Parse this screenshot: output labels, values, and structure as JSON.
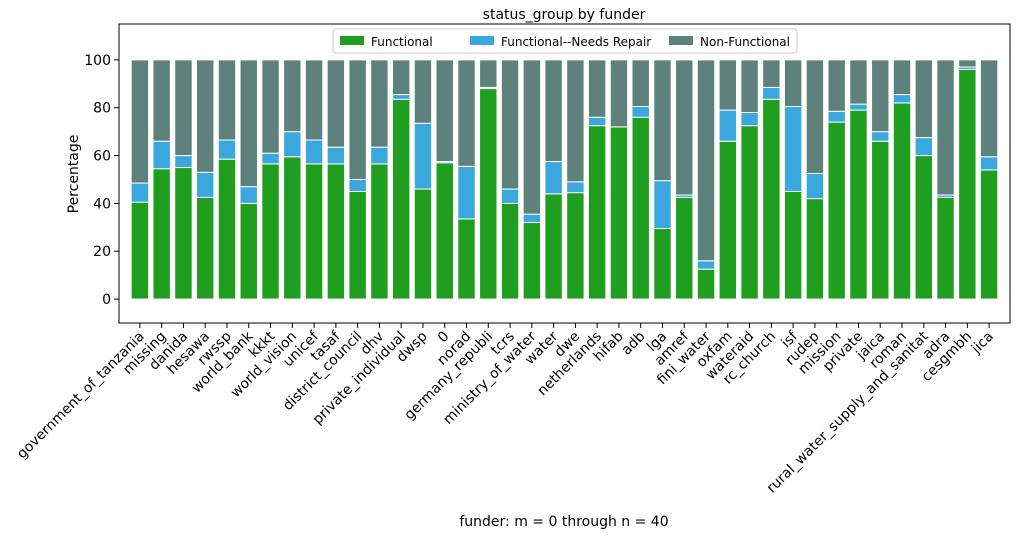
{
  "chart_data": {
    "type": "bar",
    "stacked": true,
    "title": "status_group by funder",
    "xlabel": "funder: m = 0 through n = 40",
    "ylabel": "Percentage",
    "ylim": [
      -10,
      115
    ],
    "yticks": [
      0,
      20,
      40,
      60,
      80,
      100
    ],
    "grid": false,
    "legend_position": "top-center",
    "categories": [
      "government_of_tanzania",
      "missing",
      "danida",
      "hesawa",
      "rwssp",
      "world_bank",
      "kkkt",
      "world_vision",
      "unicef",
      "tasaf",
      "district_council",
      "dhv",
      "private_individual",
      "dwsp",
      "0",
      "norad",
      "germany_republi",
      "tcrs",
      "ministry_of_water",
      "water",
      "dwe",
      "netherlands",
      "hifab",
      "adb",
      "lga",
      "amref",
      "fini_water",
      "oxfam",
      "wateraid",
      "rc_church",
      "isf",
      "rudep",
      "mission",
      "private",
      "jaica",
      "roman",
      "rural_water_supply_and_sanitat",
      "adra",
      "cesgmbh",
      "jica"
    ],
    "series": [
      {
        "name": "Functional",
        "color": "#1f9e1f",
        "values": [
          40.5,
          54.5,
          55,
          42.5,
          58.5,
          40,
          56.5,
          59.5,
          56.5,
          56.5,
          45,
          56.5,
          83.5,
          46,
          57,
          33.5,
          88,
          40,
          32,
          44,
          44.5,
          72.5,
          72,
          76,
          29.5,
          42.5,
          12.5,
          66,
          72.5,
          83.5,
          45,
          42,
          74,
          79,
          66,
          82,
          60,
          42.5,
          96,
          54
        ]
      },
      {
        "name": "Functional--Needs Repair",
        "color": "#3aa7dd",
        "values": [
          8,
          11.5,
          5,
          10.5,
          8,
          7,
          4.5,
          10.5,
          10,
          7,
          5,
          7,
          2,
          27.5,
          0.5,
          22,
          0.5,
          6,
          3.5,
          13.5,
          4.5,
          3.5,
          0,
          4.5,
          20,
          1,
          3.5,
          13,
          5.5,
          5,
          35.5,
          10.5,
          4.5,
          2.5,
          4,
          3.5,
          7.5,
          1,
          1,
          5.5
        ]
      },
      {
        "name": "Non-Functional",
        "color": "#5e827b",
        "values": [
          51.5,
          34,
          40,
          47,
          33.5,
          53,
          39,
          30,
          33.5,
          36.5,
          50,
          36.5,
          14.5,
          26.5,
          42.5,
          44.5,
          11.5,
          54,
          64.5,
          42.5,
          51,
          24,
          28,
          19.5,
          50.5,
          56.5,
          84,
          21,
          22,
          11.5,
          19.5,
          47.5,
          21.5,
          18.5,
          30,
          14.5,
          32.5,
          56.5,
          3,
          40.5
        ]
      }
    ]
  }
}
